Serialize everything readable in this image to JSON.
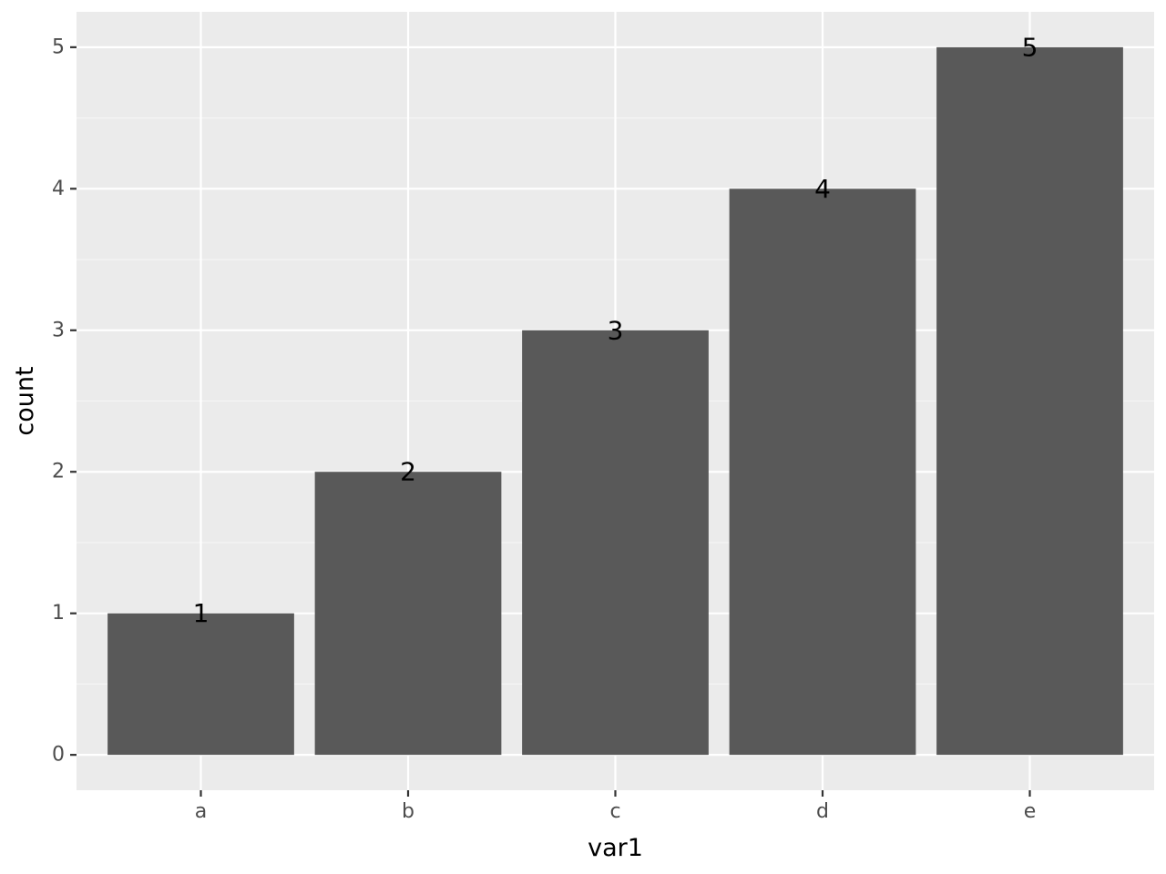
{
  "chart_data": {
    "type": "bar",
    "categories": [
      "a",
      "b",
      "c",
      "d",
      "e"
    ],
    "values": [
      1,
      2,
      3,
      4,
      5
    ],
    "xlabel": "var1",
    "ylabel": "count",
    "ylim": [
      -0.25,
      5.25
    ],
    "y_ticks": [
      0,
      1,
      2,
      3,
      4,
      5
    ],
    "grid": true,
    "data_labels": [
      "1",
      "2",
      "3",
      "4",
      "5"
    ]
  },
  "colors": {
    "panel_background": "#ebebeb",
    "grid_major": "#ffffff",
    "grid_minor": "#f5f5f5",
    "bar_fill": "#595959",
    "tick_text": "#4d4d4d",
    "tick_mark": "#333333"
  }
}
